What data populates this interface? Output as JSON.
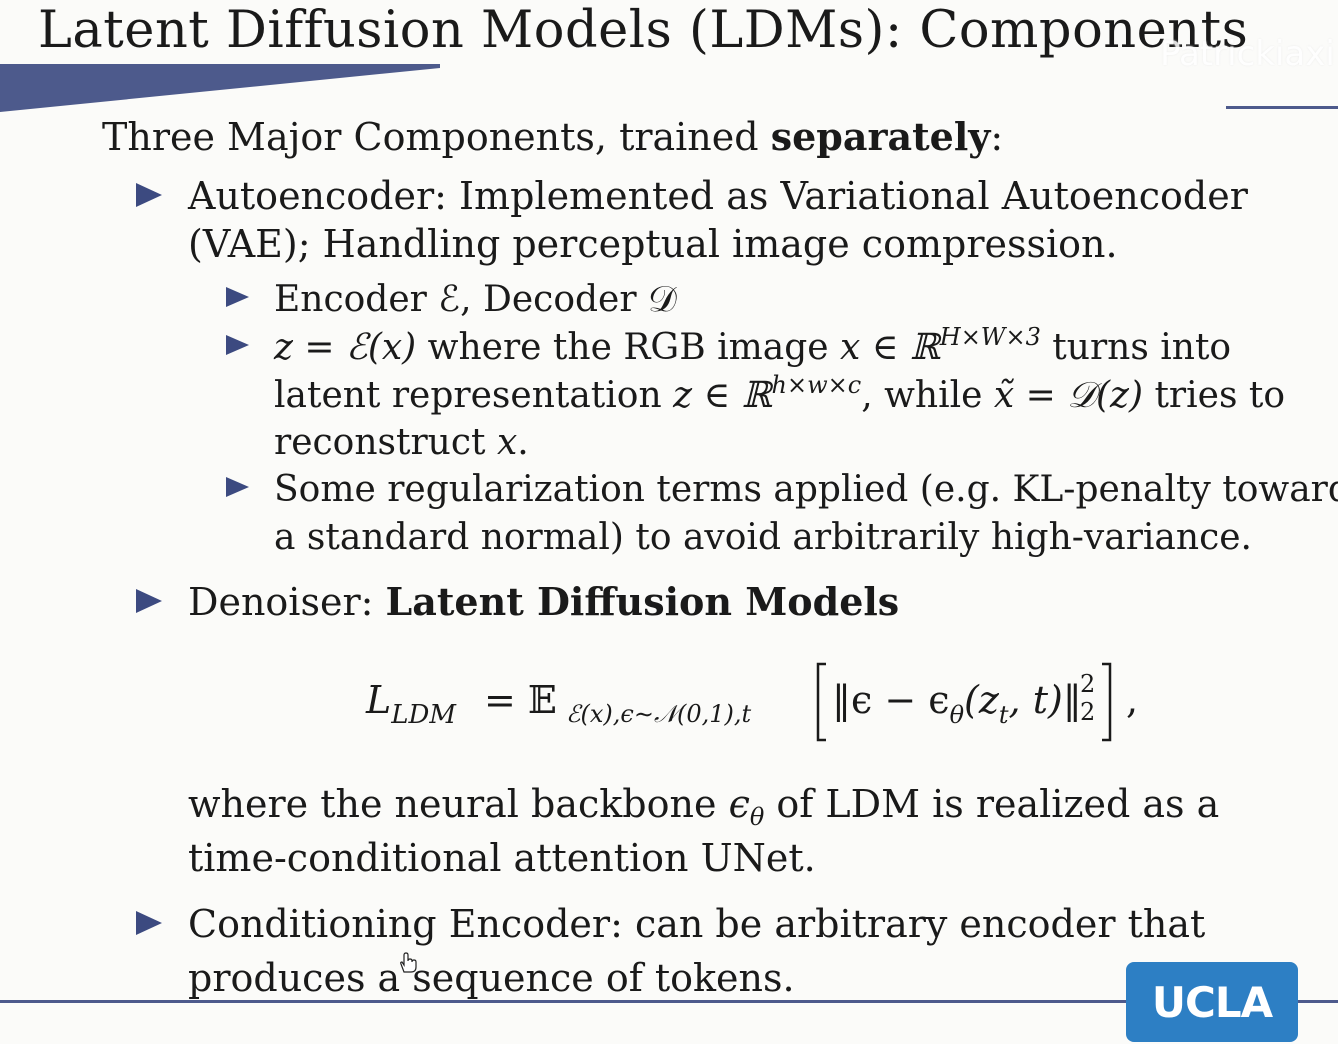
{
  "slide": {
    "title": "Latent Diffusion Models (LDMs): Components",
    "watermark": "Patrickiaxi",
    "intro_prefix": "Three Major Components, trained ",
    "intro_bold": "separately",
    "intro_suffix": ":"
  },
  "bullets": {
    "autoencoder": {
      "line1": "Autoencoder: Implemented as Variational Autoencoder",
      "line2": "(VAE); Handling perceptual image compression.",
      "sub1": "Encoder ℰ, Decoder 𝒟",
      "sub2_line1_math": "z = ℰ(x)",
      "sub2_line1_text": " where the RGB image ",
      "sub2_line1_math2": "x ∈ ℝ",
      "sub2_line1_sup": "H×W×3",
      "sub2_line1_end": " turns into",
      "sub2_line2_text": "latent representation ",
      "sub2_line2_math": "z ∈ ℝ",
      "sub2_line2_sup": "h×w×c",
      "sub2_line2_mid": ", while ",
      "sub2_line2_math2": "x̃ = 𝒟(z)",
      "sub2_line2_end": " tries to",
      "sub2_line3_text": "reconstruct ",
      "sub2_line3_math": "x",
      "sub2_line3_end": ".",
      "sub3_line1": "Some regularization terms applied (e.g. KL-penalty towards",
      "sub3_line2": "a standard normal) to avoid arbitrarily high-variance."
    },
    "denoiser": {
      "prefix": "Denoiser: ",
      "bold": "Latent Diffusion Models",
      "equation": {
        "lhs": "L",
        "lhs_sub": "LDM",
        "eq": " = 𝔼",
        "expect_sub": "ℰ(x),ϵ∼𝒩(0,1),t",
        "body": "‖ϵ − ϵ",
        "theta": "θ",
        "args": "(z",
        "t_sub": "t",
        "args_end": ", t)‖",
        "norm_sup": "2",
        "norm_sub": "2",
        "trail": ","
      },
      "after_line1_a": "where the neural backbone ",
      "after_line1_math": "ϵ",
      "after_line1_sub": "θ",
      "after_line1_b": " of LDM is realized as a",
      "after_line2": "time-conditional attention UNet."
    },
    "conditioning": {
      "line1": "Conditioning Encoder: can be arbitrary encoder that",
      "line2": "produces a sequence of tokens."
    }
  },
  "logo": {
    "text": "UCLA"
  },
  "colors": {
    "accent": "#3c4a80",
    "rule": "#4d5a8c",
    "logo_bg": "#2d7fc4",
    "background": "#fbfbf9"
  }
}
